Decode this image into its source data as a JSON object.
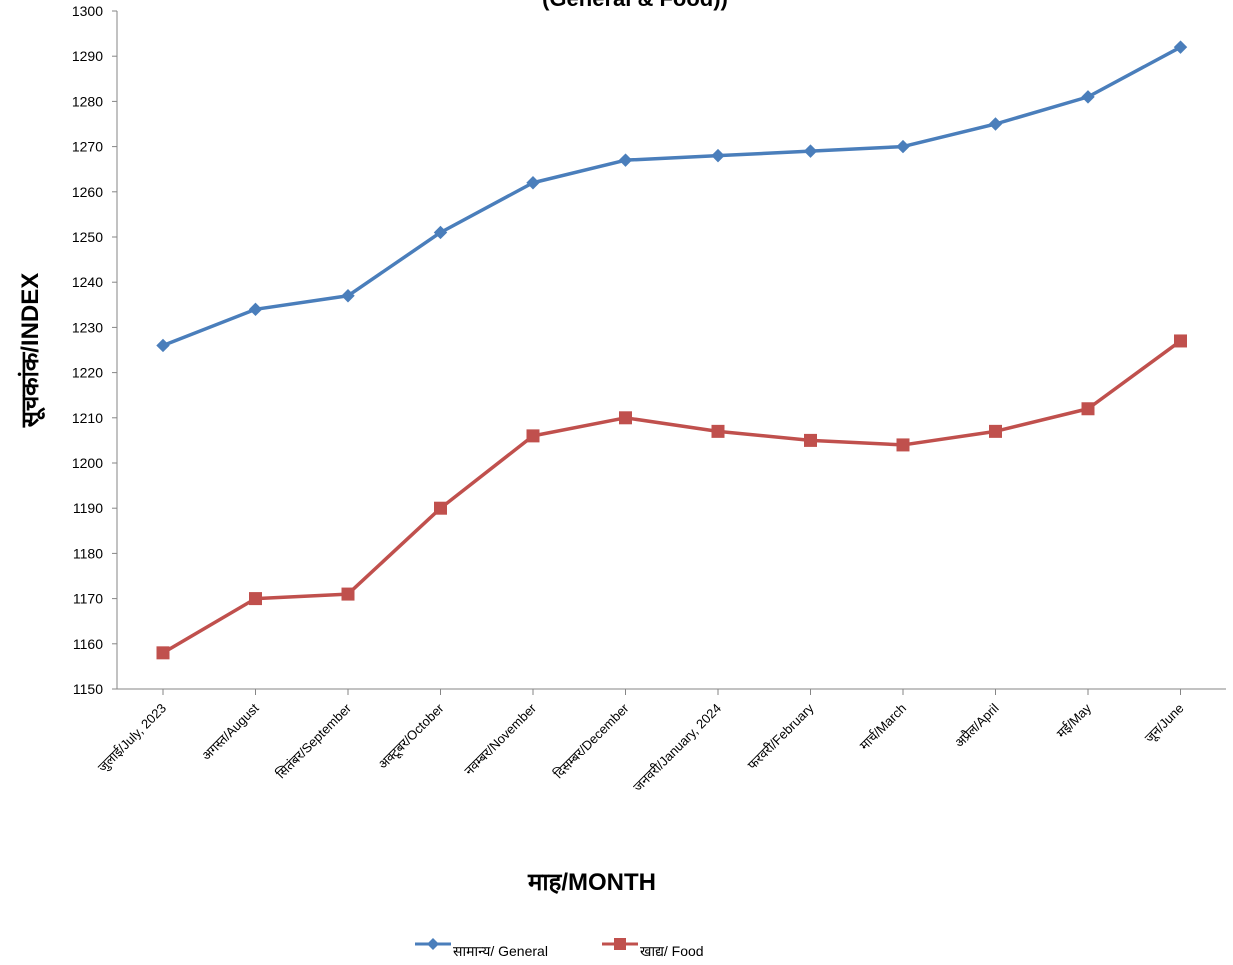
{
  "chart_data": {
    "type": "line",
    "title": "(General & Food))",
    "xlabel": "माह/MONTH",
    "ylabel": "सूचकांक/INDEX",
    "ylim": [
      1150,
      1300
    ],
    "ytick_step": 10,
    "grid": false,
    "legend_position": "bottom",
    "categories": [
      "जुलाई/July, 2023",
      "अगस्त/August",
      "सितंबर/September",
      "अक्टूबर/October",
      "नवम्बर/November",
      "दिसम्बर/December",
      "जनवरी/January, 2024",
      "फरवरी/February",
      "मार्च/March",
      "अप्रैल/April",
      "मई/May",
      "जून/June"
    ],
    "series": [
      {
        "name": "सामान्य/  General",
        "color": "#4a7ebb",
        "marker": "diamond",
        "values": [
          1226,
          1234,
          1237,
          1251,
          1262,
          1267,
          1268,
          1269,
          1270,
          1275,
          1281,
          1292
        ]
      },
      {
        "name": "खाद्य/  Food",
        "color": "#c0504d",
        "marker": "square",
        "values": [
          1158,
          1170,
          1171,
          1190,
          1206,
          1210,
          1207,
          1205,
          1204,
          1207,
          1212,
          1227
        ]
      }
    ]
  }
}
